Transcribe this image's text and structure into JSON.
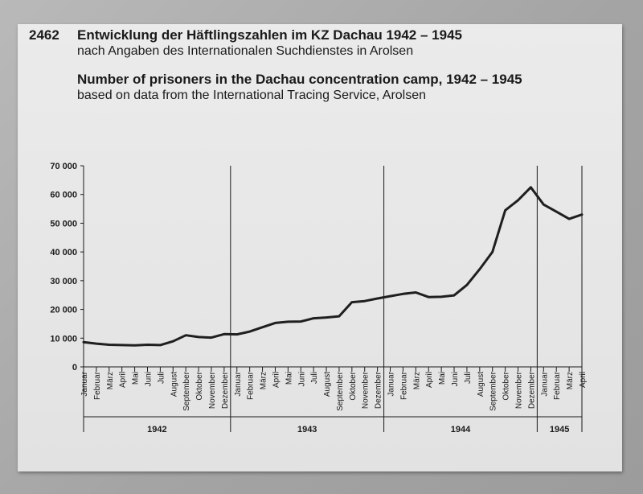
{
  "header": {
    "number": "2462",
    "title_de": "Entwicklung der Häftlingszahlen im KZ Dachau 1942 – 1945",
    "subtitle_de": "nach Angaben des Internationalen Suchdienstes in Arolsen",
    "title_en": "Number of prisoners in the Dachau concentration camp, 1942 – 1945",
    "subtitle_en": "based on data from the International Tracing Service, Arolsen"
  },
  "chart_data": {
    "type": "line",
    "ylim": [
      0,
      70000
    ],
    "yticks": [
      0,
      10000,
      20000,
      30000,
      40000,
      50000,
      60000,
      70000
    ],
    "ytick_labels": [
      "0",
      "10 000",
      "20 000",
      "30 000",
      "40 000",
      "50 000",
      "60 000",
      "70 000"
    ],
    "month_labels": [
      "Januar",
      "Februar",
      "März",
      "April",
      "Mai",
      "Juni",
      "Juli",
      "August",
      "September",
      "Oktober",
      "November",
      "Dezember",
      "Januar",
      "Februar",
      "März",
      "April",
      "Mai",
      "Juni",
      "Juli",
      "August",
      "September",
      "Oktober",
      "November",
      "Dezember",
      "Januar",
      "Februar",
      "März",
      "April",
      "Mai",
      "Juni",
      "Juli",
      "August",
      "September",
      "Oktober",
      "November",
      "Dezember",
      "Januar",
      "Februar",
      "März",
      "April"
    ],
    "years": [
      "1942",
      "1943",
      "1944",
      "1945"
    ],
    "grid": false,
    "series": [
      {
        "values": [
          8600,
          8100,
          7700,
          7600,
          7500,
          7700,
          7600,
          8900,
          11000,
          10400,
          10200,
          11400,
          11300,
          12300,
          13800,
          15300,
          15700,
          15800,
          16900,
          17200,
          17600,
          22500,
          22900,
          23800,
          24600,
          25400,
          25900,
          24300,
          24400,
          24900,
          28500,
          34000,
          40000,
          54500,
          58000,
          62500,
          56500,
          54000,
          51500,
          53000
        ]
      }
    ]
  }
}
